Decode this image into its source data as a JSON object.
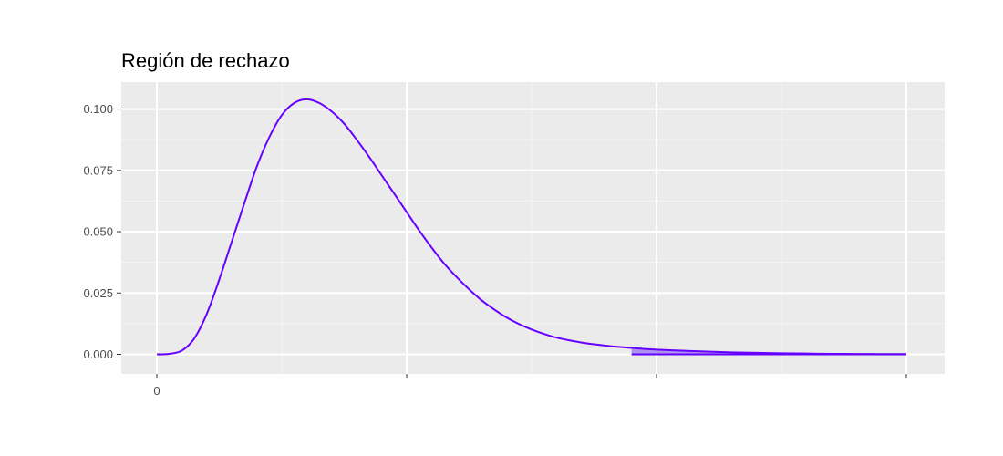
{
  "chart_data": {
    "type": "area",
    "title": "Región de rechazo",
    "xlabel": "",
    "ylabel": "",
    "xlim": [
      0,
      30
    ],
    "ylim": [
      -0.008,
      0.111
    ],
    "x_major_ticks": [
      0,
      10,
      20,
      30
    ],
    "x_tick_labels": [
      "0",
      "",
      "",
      ""
    ],
    "x_minor_gridlines": [
      5,
      15,
      25
    ],
    "y_ticks": [
      0.0,
      0.025,
      0.05,
      0.075,
      0.1
    ],
    "y_tick_labels": [
      "0.000",
      "0.025",
      "0.050",
      "0.075",
      "0.100"
    ],
    "grid": true,
    "legend": "none",
    "series": [
      {
        "type": "line",
        "x": [
          0,
          0.5,
          1,
          1.5,
          2,
          2.5,
          3,
          3.5,
          4,
          4.5,
          5,
          5.5,
          6,
          6.5,
          7,
          7.5,
          8,
          8.5,
          9,
          9.5,
          10,
          10.5,
          11,
          11.5,
          12,
          12.5,
          13,
          13.5,
          14,
          14.5,
          15,
          15.5,
          16,
          16.5,
          17,
          17.5,
          18,
          18.5,
          19,
          19.5,
          20,
          21,
          22,
          23,
          24,
          25,
          26,
          27,
          28,
          29,
          30
        ],
        "y": [
          0.0,
          0.0002,
          0.0015,
          0.0065,
          0.0165,
          0.0305,
          0.046,
          0.0615,
          0.0765,
          0.0885,
          0.0975,
          0.1025,
          0.104,
          0.1025,
          0.099,
          0.094,
          0.0875,
          0.0805,
          0.073,
          0.0655,
          0.058,
          0.0505,
          0.0435,
          0.037,
          0.0315,
          0.0265,
          0.022,
          0.0183,
          0.015,
          0.0123,
          0.0101,
          0.0083,
          0.0068,
          0.0057,
          0.0048,
          0.0041,
          0.0035,
          0.003,
          0.0026,
          0.0022,
          0.0019,
          0.0015,
          0.0011,
          0.0008,
          0.0006,
          0.0004,
          0.0003,
          0.0002,
          0.00015,
          0.0001,
          0.0001
        ]
      },
      {
        "type": "area",
        "x_from": 19,
        "x_to": 30
      }
    ],
    "colors": {
      "line": "#6600ff",
      "fill": "#a98cf0",
      "panel": "#ebebeb",
      "grid_major": "#ffffff",
      "grid_minor": "#f5f5f5",
      "tick": "#333333"
    }
  }
}
